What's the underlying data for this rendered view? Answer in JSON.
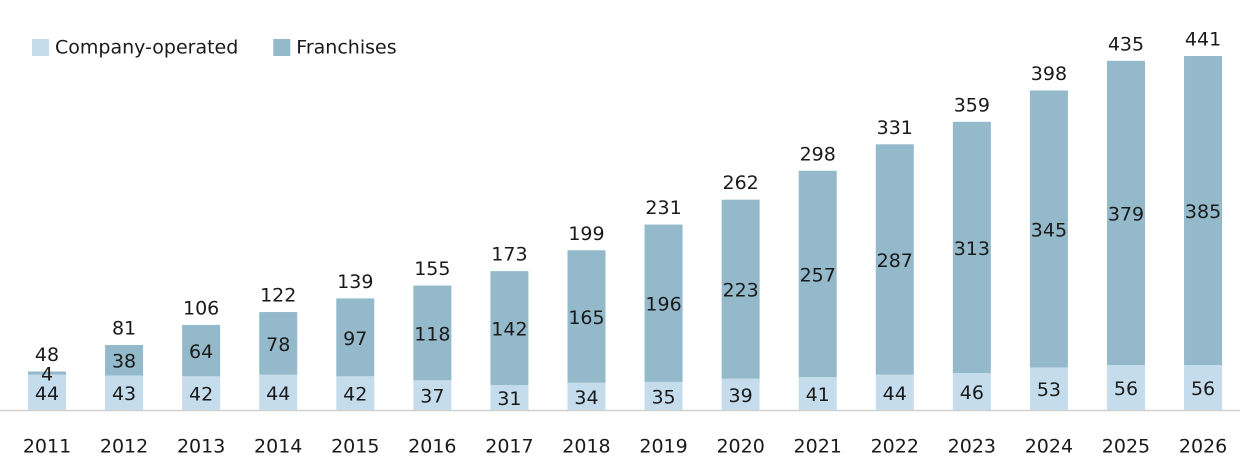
{
  "chart_data": {
    "type": "stacked_bar",
    "categories": [
      "2011",
      "2012",
      "2013",
      "2014",
      "2015",
      "2016",
      "2017",
      "2018",
      "2019",
      "2020",
      "2021",
      "2022",
      "2023",
      "2024",
      "2025",
      "2026"
    ],
    "series": [
      {
        "name": "Company-operated",
        "color": "#c4dcec",
        "values": [
          44,
          43,
          42,
          44,
          42,
          37,
          31,
          34,
          35,
          39,
          41,
          44,
          46,
          53,
          56,
          56
        ]
      },
      {
        "name": "Franchises",
        "color": "#93b9cb",
        "values": [
          4,
          38,
          64,
          78,
          97,
          118,
          142,
          165,
          196,
          223,
          257,
          287,
          313,
          345,
          379,
          385
        ]
      }
    ],
    "totals": [
      48,
      81,
      106,
      122,
      139,
      155,
      173,
      199,
      231,
      262,
      298,
      331,
      359,
      398,
      435,
      441
    ],
    "legend": "top-left"
  }
}
